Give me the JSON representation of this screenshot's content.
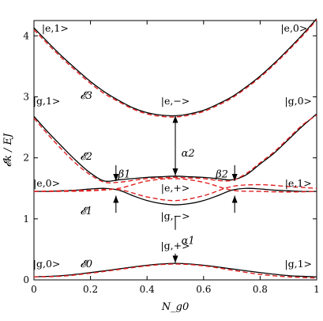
{
  "chart_data": {
    "type": "line",
    "xlabel": "N_g0",
    "ylabel": "𝓔k / EJ",
    "xlim": [
      0,
      1
    ],
    "ylim": [
      0,
      4.25
    ],
    "xticks": [
      "0",
      "0.2",
      "0.4",
      "0.6",
      "0.8",
      "1"
    ],
    "xtick_values": [
      0,
      0.2,
      0.4,
      0.6,
      0.8,
      1
    ],
    "yticks": [
      "0",
      "1",
      "2",
      "3",
      "4"
    ],
    "ytick_values": [
      0,
      1,
      2,
      3,
      4
    ],
    "colors": {
      "solid": "#000000",
      "dashed": "#e02020"
    },
    "series": [
      {
        "style": "solid",
        "x": [
          0,
          0.1,
          0.2,
          0.3,
          0.4,
          0.5,
          0.6,
          0.7,
          0.8,
          0.9,
          1
        ],
        "y": [
          0.05,
          0.07,
          0.12,
          0.18,
          0.24,
          0.27,
          0.24,
          0.18,
          0.12,
          0.07,
          0.05
        ]
      },
      {
        "style": "dashed",
        "x": [
          0,
          0.1,
          0.2,
          0.3,
          0.4,
          0.5,
          0.6,
          0.7,
          0.8,
          0.9,
          1
        ],
        "y": [
          0.05,
          0.06,
          0.11,
          0.17,
          0.23,
          0.26,
          0.23,
          0.16,
          0.09,
          0.05,
          0.03
        ]
      },
      {
        "style": "solid",
        "x": [
          0,
          0.05,
          0.1,
          0.15,
          0.2,
          0.25,
          0.3,
          0.35,
          0.4,
          0.45,
          0.5,
          0.55,
          0.6,
          0.65,
          0.7,
          0.75,
          0.8,
          0.85,
          0.9,
          0.95,
          1
        ],
        "y": [
          1.45,
          1.45,
          1.46,
          1.47,
          1.49,
          1.5,
          1.47,
          1.38,
          1.3,
          1.25,
          1.23,
          1.25,
          1.3,
          1.38,
          1.47,
          1.5,
          1.49,
          1.47,
          1.46,
          1.45,
          1.45
        ]
      },
      {
        "style": "dashed",
        "x": [
          0,
          0.1,
          0.2,
          0.3,
          0.4,
          0.5,
          0.6,
          0.7,
          0.8,
          0.9,
          1
        ],
        "y": [
          1.45,
          1.45,
          1.46,
          1.5,
          1.62,
          1.66,
          1.6,
          1.47,
          1.45,
          1.44,
          1.45
        ]
      },
      {
        "style": "dashed",
        "x": [
          0,
          0.1,
          0.2,
          0.3,
          0.4,
          0.5,
          0.6,
          0.7,
          0.8,
          0.9,
          1
        ],
        "y": [
          1.45,
          1.46,
          1.47,
          1.48,
          1.36,
          1.3,
          1.38,
          1.53,
          1.56,
          1.53,
          1.5
        ]
      },
      {
        "style": "solid",
        "x": [
          0,
          0.05,
          0.1,
          0.15,
          0.2,
          0.25,
          0.3,
          0.35,
          0.4,
          0.45,
          0.5,
          0.55,
          0.6,
          0.65,
          0.7,
          0.75,
          0.8,
          0.85,
          0.9,
          0.95,
          1
        ],
        "y": [
          2.68,
          2.42,
          2.18,
          1.95,
          1.75,
          1.62,
          1.64,
          1.66,
          1.68,
          1.69,
          1.7,
          1.69,
          1.68,
          1.66,
          1.64,
          1.72,
          1.9,
          2.08,
          2.3,
          2.52,
          2.72
        ]
      },
      {
        "style": "dashed",
        "x": [
          0,
          0.05,
          0.1,
          0.15,
          0.2,
          0.25,
          0.3,
          0.35,
          0.4,
          0.45,
          0.5,
          0.55,
          0.6,
          0.65,
          0.7,
          0.75,
          0.8,
          0.85,
          0.9,
          0.95,
          1
        ],
        "y": [
          2.65,
          2.38,
          2.13,
          1.9,
          1.72,
          1.6,
          1.6,
          1.63,
          1.66,
          1.67,
          1.68,
          1.67,
          1.66,
          1.63,
          1.63,
          1.74,
          1.92,
          2.1,
          2.32,
          2.54,
          2.7
        ]
      },
      {
        "style": "solid",
        "x": [
          0,
          0.05,
          0.1,
          0.15,
          0.2,
          0.25,
          0.3,
          0.35,
          0.4,
          0.45,
          0.5,
          0.55,
          0.6,
          0.65,
          0.7,
          0.75,
          0.8,
          0.85,
          0.9,
          0.95,
          1
        ],
        "y": [
          4.13,
          3.89,
          3.66,
          3.45,
          3.25,
          3.08,
          2.94,
          2.82,
          2.74,
          2.7,
          2.69,
          2.72,
          2.78,
          2.88,
          3.0,
          3.16,
          3.34,
          3.55,
          3.78,
          4.02,
          4.28
        ]
      },
      {
        "style": "dashed",
        "x": [
          0,
          0.05,
          0.1,
          0.15,
          0.2,
          0.25,
          0.3,
          0.35,
          0.4,
          0.45,
          0.5,
          0.55,
          0.6,
          0.65,
          0.7,
          0.75,
          0.8,
          0.85,
          0.9,
          0.95,
          1
        ],
        "y": [
          4.1,
          3.86,
          3.63,
          3.42,
          3.22,
          3.05,
          2.92,
          2.8,
          2.72,
          2.68,
          2.67,
          2.7,
          2.76,
          2.86,
          2.98,
          3.14,
          3.32,
          3.53,
          3.76,
          4.0,
          4.26
        ]
      }
    ],
    "annotations": [
      {
        "text": "|e,1>",
        "x": 0.075,
        "y": 4.12,
        "italic": false
      },
      {
        "text": "|e,0>",
        "x": 0.92,
        "y": 4.12,
        "italic": false
      },
      {
        "text": "𝓔3",
        "x": 0.185,
        "y": 3.02,
        "italic": true
      },
      {
        "text": "|g,1>",
        "x": 0.045,
        "y": 2.93,
        "italic": false
      },
      {
        "text": "|g,0>",
        "x": 0.935,
        "y": 2.93,
        "italic": false
      },
      {
        "text": "|e,−>",
        "x": 0.5,
        "y": 2.93,
        "italic": false
      },
      {
        "text": "α2",
        "x": 0.545,
        "y": 2.07,
        "italic": true
      },
      {
        "text": "𝓔2",
        "x": 0.185,
        "y": 2.02,
        "italic": true
      },
      {
        "text": "β1",
        "x": 0.32,
        "y": 1.73,
        "italic": true
      },
      {
        "text": "β2",
        "x": 0.665,
        "y": 1.73,
        "italic": true
      },
      {
        "text": "|e,0>",
        "x": 0.045,
        "y": 1.58,
        "italic": false
      },
      {
        "text": "|e,1>",
        "x": 0.935,
        "y": 1.58,
        "italic": false
      },
      {
        "text": "|e,+>",
        "x": 0.5,
        "y": 1.5,
        "italic": false
      },
      {
        "text": "𝓔1",
        "x": 0.185,
        "y": 1.13,
        "italic": true
      },
      {
        "text": "|g,−>",
        "x": 0.5,
        "y": 1.04,
        "italic": false
      },
      {
        "text": "|g,+>",
        "x": 0.5,
        "y": 0.56,
        "italic": false
      },
      {
        "text": "α1",
        "x": 0.545,
        "y": 0.64,
        "italic": true
      },
      {
        "text": "|g,0>",
        "x": 0.045,
        "y": 0.26,
        "italic": false
      },
      {
        "text": "𝓔0",
        "x": 0.185,
        "y": 0.26,
        "italic": true
      },
      {
        "text": "|g,1>",
        "x": 0.935,
        "y": 0.26,
        "italic": false
      }
    ],
    "arrows": [
      {
        "x": 0.5,
        "from": 2.16,
        "to": 2.69,
        "head": "up"
      },
      {
        "x": 0.5,
        "from": 2.16,
        "to": 1.71,
        "head": "down"
      },
      {
        "x": 0.29,
        "from": 1.88,
        "to": 1.62,
        "head": "down"
      },
      {
        "x": 0.29,
        "from": 1.1,
        "to": 1.38,
        "head": "up"
      },
      {
        "x": 0.71,
        "from": 1.88,
        "to": 1.62,
        "head": "down"
      },
      {
        "x": 0.71,
        "from": 1.1,
        "to": 1.38,
        "head": "up"
      },
      {
        "x": 0.5,
        "from": 0.82,
        "to": 1.04,
        "head": "none"
      },
      {
        "x": 0.5,
        "from": 0.43,
        "to": 0.28,
        "head": "down"
      }
    ]
  }
}
